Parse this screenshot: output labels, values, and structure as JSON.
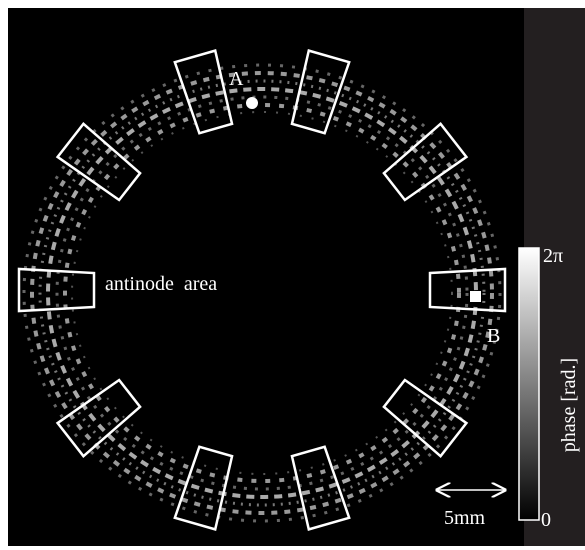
{
  "figure": {
    "labels": {
      "a": "A",
      "b": "B",
      "antinode": "antinode  area",
      "scale": "5mm"
    },
    "colorbar": {
      "title": "phase [rad.]",
      "max_label": "2π",
      "min_label": "0"
    }
  }
}
